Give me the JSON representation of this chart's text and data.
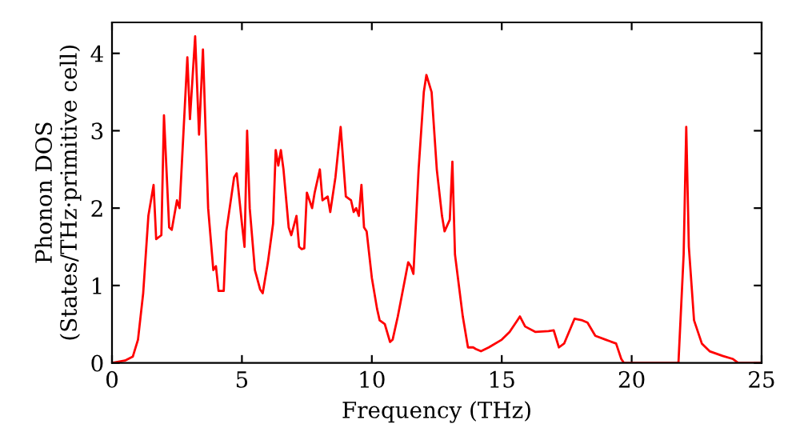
{
  "chart_data": {
    "type": "line",
    "xlabel": "Frequency (THz)",
    "ylabel": "Phonon DOS\n(States/THz·primitive cell)",
    "xlim": [
      0,
      25
    ],
    "ylim": [
      0,
      4.4
    ],
    "xticks": [
      0,
      5,
      10,
      15,
      20,
      25
    ],
    "yticks": [
      0,
      1,
      2,
      3,
      4
    ],
    "grid": false,
    "legend": false,
    "marker": "none",
    "line_style": "solid",
    "series": [
      {
        "color": "#ff0000",
        "x": [
          0,
          0.5,
          0.8,
          1.0,
          1.2,
          1.4,
          1.6,
          1.7,
          1.9,
          2.0,
          2.2,
          2.3,
          2.5,
          2.6,
          2.9,
          3.0,
          3.2,
          3.35,
          3.5,
          3.7,
          3.9,
          4.0,
          4.1,
          4.3,
          4.4,
          4.7,
          4.8,
          5.0,
          5.1,
          5.2,
          5.3,
          5.5,
          5.7,
          5.8,
          6.0,
          6.2,
          6.3,
          6.4,
          6.5,
          6.6,
          6.8,
          6.9,
          7.1,
          7.2,
          7.3,
          7.4,
          7.5,
          7.7,
          7.8,
          8.0,
          8.1,
          8.3,
          8.4,
          8.6,
          8.8,
          9.0,
          9.2,
          9.3,
          9.4,
          9.5,
          9.6,
          9.7,
          9.8,
          10.0,
          10.2,
          10.3,
          10.5,
          10.7,
          10.8,
          11.0,
          11.2,
          11.4,
          11.5,
          11.6,
          11.8,
          12.0,
          12.1,
          12.3,
          12.5,
          12.7,
          12.8,
          13.0,
          13.1,
          13.2,
          13.5,
          13.7,
          13.9,
          14.0,
          14.2,
          14.5,
          15.0,
          15.3,
          15.6,
          15.7,
          15.9,
          16.3,
          16.8,
          17.0,
          17.2,
          17.4,
          17.8,
          18.1,
          18.3,
          18.6,
          19.0,
          19.4,
          19.6,
          19.7,
          21.8,
          22.0,
          22.1,
          22.2,
          22.4,
          22.7,
          23.0,
          23.5,
          23.9,
          24.1,
          25
        ],
        "values": [
          0,
          0.03,
          0.08,
          0.3,
          0.9,
          1.9,
          2.3,
          1.6,
          1.65,
          3.2,
          1.75,
          1.72,
          2.1,
          2.0,
          3.95,
          3.15,
          4.22,
          2.95,
          4.05,
          2.0,
          1.2,
          1.25,
          0.93,
          0.93,
          1.7,
          2.4,
          2.45,
          1.8,
          1.5,
          3.0,
          2.0,
          1.2,
          0.95,
          0.9,
          1.3,
          1.8,
          2.75,
          2.55,
          2.75,
          2.5,
          1.75,
          1.65,
          1.9,
          1.5,
          1.47,
          1.48,
          2.2,
          2.0,
          2.2,
          2.5,
          2.1,
          2.15,
          1.95,
          2.4,
          3.05,
          2.15,
          2.1,
          1.95,
          2.0,
          1.9,
          2.3,
          1.75,
          1.7,
          1.1,
          0.7,
          0.55,
          0.5,
          0.27,
          0.3,
          0.6,
          0.95,
          1.3,
          1.25,
          1.15,
          2.5,
          3.5,
          3.72,
          3.5,
          2.5,
          1.9,
          1.7,
          1.85,
          2.6,
          1.4,
          0.6,
          0.2,
          0.2,
          0.18,
          0.15,
          0.2,
          0.3,
          0.4,
          0.55,
          0.6,
          0.47,
          0.4,
          0.41,
          0.42,
          0.2,
          0.25,
          0.57,
          0.55,
          0.52,
          0.35,
          0.3,
          0.25,
          0.05,
          0,
          0,
          1.4,
          3.05,
          1.5,
          0.55,
          0.25,
          0.15,
          0.09,
          0.05,
          0,
          0
        ]
      }
    ]
  }
}
